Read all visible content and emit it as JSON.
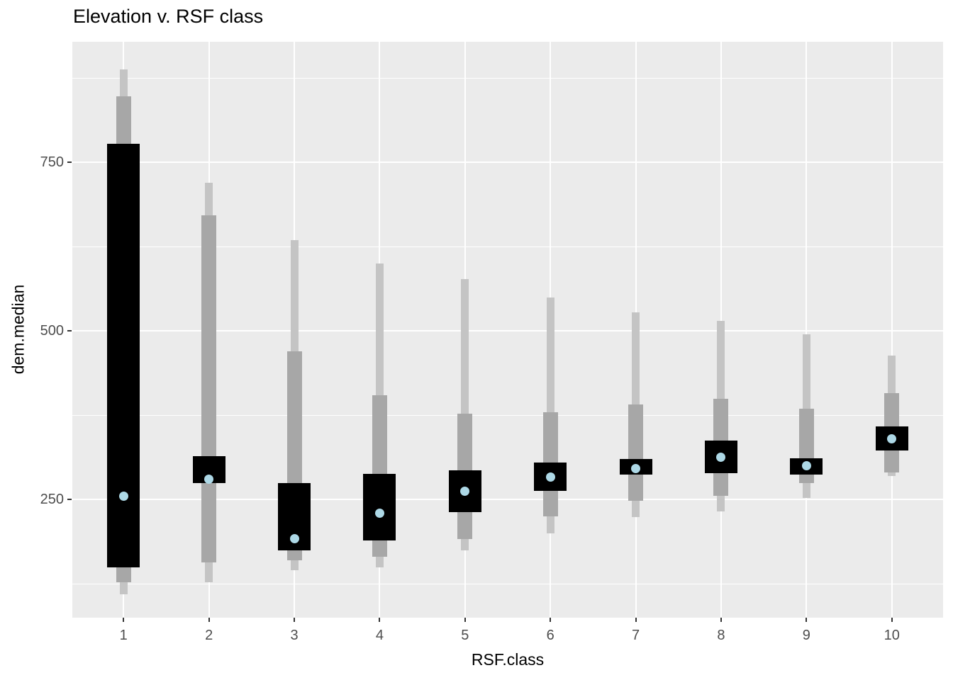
{
  "title": "Elevation v. RSF class",
  "axes": {
    "x_label": "RSF.class",
    "y_label": "dem.median"
  },
  "colors": {
    "panel_background": "#EBEBEB",
    "gridline": "#FFFFFF",
    "outer_whisker": "#C4C4C4",
    "inner_band": "#A7A7A7",
    "box": "#000000",
    "median_point": "#ADD8E6",
    "tick_text": "#4D4D4D",
    "axis_tick": "#333333",
    "text": "#000000"
  },
  "chart_data": {
    "type": "boxplot",
    "title": "Elevation v. RSF class",
    "xlabel": "RSF.class",
    "ylabel": "dem.median",
    "categories": [
      "1",
      "2",
      "3",
      "4",
      "5",
      "6",
      "7",
      "8",
      "9",
      "10"
    ],
    "ylim": [
      75,
      929
    ],
    "yticks": [
      250,
      500,
      750
    ],
    "yminor": [
      125,
      375,
      625,
      875
    ],
    "grid": "white major+minor horizontal lines and vertical line per category on gray panel",
    "legend": "none",
    "series": [
      {
        "class": "1",
        "whisker_low": 110,
        "whisker_high": 888,
        "band_low": 127,
        "band_high": 848,
        "box_low": 150,
        "box_high": 778,
        "median": 255
      },
      {
        "class": "2",
        "whisker_low": 128,
        "whisker_high": 720,
        "band_low": 157,
        "band_high": 672,
        "box_low": 275,
        "box_high": 315,
        "median": 280
      },
      {
        "class": "3",
        "whisker_low": 145,
        "whisker_high": 635,
        "band_low": 160,
        "band_high": 470,
        "box_low": 175,
        "box_high": 275,
        "median": 192
      },
      {
        "class": "4",
        "whisker_low": 150,
        "whisker_high": 600,
        "band_low": 165,
        "band_high": 405,
        "box_low": 190,
        "box_high": 288,
        "median": 230
      },
      {
        "class": "5",
        "whisker_low": 175,
        "whisker_high": 577,
        "band_low": 192,
        "band_high": 378,
        "box_low": 232,
        "box_high": 294,
        "median": 263
      },
      {
        "class": "6",
        "whisker_low": 200,
        "whisker_high": 550,
        "band_low": 225,
        "band_high": 380,
        "box_low": 263,
        "box_high": 305,
        "median": 284
      },
      {
        "class": "7",
        "whisker_low": 224,
        "whisker_high": 528,
        "band_low": 248,
        "band_high": 391,
        "box_low": 287,
        "box_high": 310,
        "median": 296
      },
      {
        "class": "8",
        "whisker_low": 233,
        "whisker_high": 515,
        "band_low": 256,
        "band_high": 400,
        "box_low": 289,
        "box_high": 338,
        "median": 313
      },
      {
        "class": "9",
        "whisker_low": 253,
        "whisker_high": 495,
        "band_low": 275,
        "band_high": 385,
        "box_low": 287,
        "box_high": 311,
        "median": 300
      },
      {
        "class": "10",
        "whisker_low": 285,
        "whisker_high": 464,
        "band_low": 290,
        "band_high": 408,
        "box_low": 323,
        "box_high": 359,
        "median": 340
      }
    ]
  }
}
